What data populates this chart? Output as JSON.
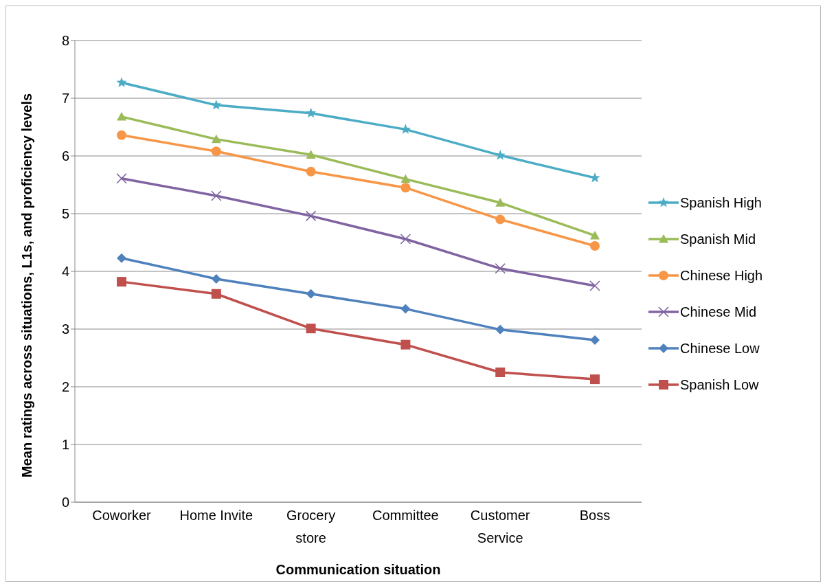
{
  "chart_data": {
    "type": "line",
    "xlabel": "Communication situation",
    "ylabel": "Mean ratings across situations, L1s, and proficiency levels",
    "categories": [
      "Coworker",
      "Home Invite",
      "Grocery store",
      "Committee",
      "Customer Service",
      "Boss"
    ],
    "series": [
      {
        "name": "Spanish High",
        "color": "#4bacc6",
        "marker": "star",
        "values": [
          7.27,
          6.88,
          6.74,
          6.46,
          6.01,
          5.62
        ]
      },
      {
        "name": "Spanish Mid",
        "color": "#9bbb59",
        "marker": "triangle",
        "values": [
          6.68,
          6.29,
          6.02,
          5.6,
          5.19,
          4.62
        ]
      },
      {
        "name": "Chinese High",
        "color": "#f79646",
        "marker": "circle",
        "values": [
          6.36,
          6.08,
          5.73,
          5.45,
          4.9,
          4.44
        ]
      },
      {
        "name": "Chinese Mid",
        "color": "#8064a2",
        "marker": "cross",
        "values": [
          5.61,
          5.31,
          4.96,
          4.56,
          4.05,
          3.75
        ]
      },
      {
        "name": "Chinese Low",
        "color": "#4f81bd",
        "marker": "diamond",
        "values": [
          4.23,
          3.87,
          3.61,
          3.35,
          2.99,
          2.81
        ]
      },
      {
        "name": "Spanish Low",
        "color": "#c0504d",
        "marker": "square",
        "values": [
          3.82,
          3.61,
          3.01,
          2.73,
          2.25,
          2.13
        ]
      }
    ],
    "ylim": [
      0,
      8
    ],
    "yticks": [
      0,
      1,
      2,
      3,
      4,
      5,
      6,
      7,
      8
    ],
    "grid": "y",
    "legend": "right",
    "line_style": "solid"
  }
}
